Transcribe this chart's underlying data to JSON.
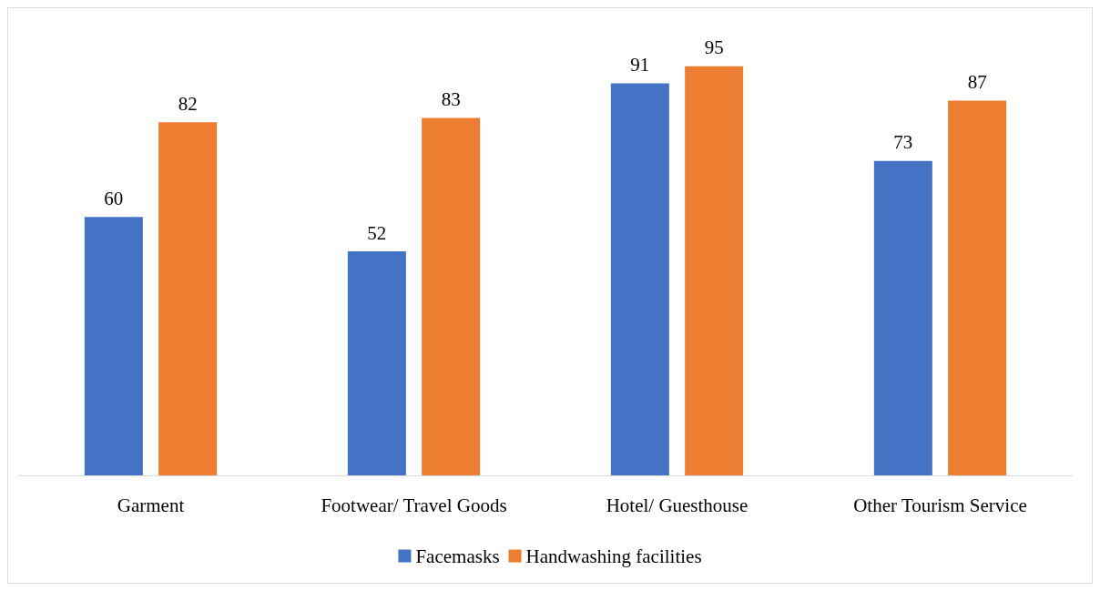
{
  "chart_data": {
    "type": "bar",
    "categories": [
      "Garment",
      "Footwear/ Travel Goods",
      "Hotel/ Guesthouse",
      "Other Tourism Service"
    ],
    "series": [
      {
        "name": "Facemasks",
        "color": "#4472c4",
        "values": [
          60,
          52,
          91,
          73
        ]
      },
      {
        "name": "Handwashing facilities",
        "color": "#ed7d31",
        "values": [
          82,
          83,
          95,
          87
        ]
      }
    ],
    "data_labels": true,
    "legend": "bottom"
  }
}
